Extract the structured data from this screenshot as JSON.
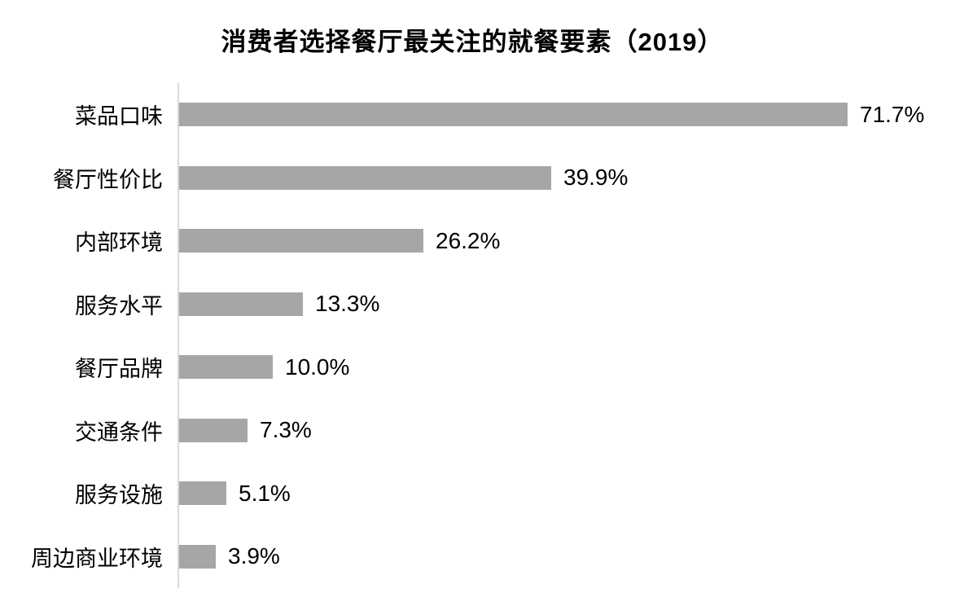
{
  "page": {
    "background_color": "#ffffff",
    "text_color": "#000000"
  },
  "chart_data": {
    "type": "bar",
    "orientation": "horizontal",
    "title": "消费者选择餐厅最关注的就餐要素（2019）",
    "categories": [
      "菜品口味",
      "餐厅性价比",
      "内部环境",
      "服务水平",
      "餐厅品牌",
      "交通条件",
      "服务设施",
      "周边商业环境"
    ],
    "values": [
      71.7,
      39.9,
      26.2,
      13.3,
      10.0,
      7.3,
      5.1,
      3.9
    ],
    "value_labels": [
      "71.7%",
      "39.9%",
      "26.2%",
      "13.3%",
      "10.0%",
      "7.3%",
      "5.1%",
      "3.9%"
    ],
    "xlabel": "",
    "ylabel": "",
    "xlim": [
      0,
      84
    ],
    "grid": false,
    "legend": false,
    "data_labels": "outside-end",
    "bar_color": "#a6a6a6",
    "axis_line_color": "#d9d9d9"
  }
}
